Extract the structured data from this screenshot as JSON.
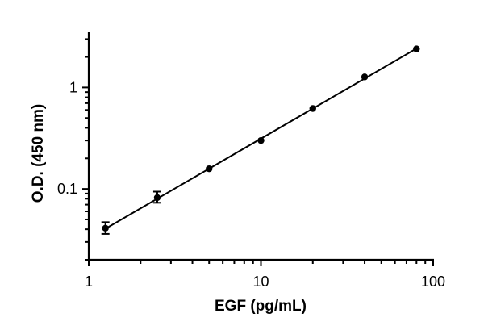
{
  "chart_data": {
    "type": "scatter",
    "title": "",
    "xlabel": "EGF (pg/mL)",
    "ylabel": "O.D. (450 nm)",
    "x_scale": "log",
    "y_scale": "log",
    "xlim": [
      1,
      100
    ],
    "ylim": [
      0.02,
      3.5
    ],
    "x_ticks": [
      {
        "value": 1,
        "label": "1"
      },
      {
        "value": 10,
        "label": "10"
      },
      {
        "value": 100,
        "label": "100"
      }
    ],
    "y_ticks": [
      {
        "value": 0.1,
        "label": "0.1"
      },
      {
        "value": 1,
        "label": "1"
      }
    ],
    "grid": false,
    "legend": "none",
    "marker_color": "#000000",
    "line_color": "#000000",
    "points": [
      {
        "x": 1.25,
        "y": 0.041,
        "err_low": 0.036,
        "err_high": 0.047
      },
      {
        "x": 2.5,
        "y": 0.082,
        "err_low": 0.073,
        "err_high": 0.094
      },
      {
        "x": 5,
        "y": 0.158,
        "err_low": 0.156,
        "err_high": 0.161
      },
      {
        "x": 10,
        "y": 0.3,
        "err_low": 0.295,
        "err_high": 0.305
      },
      {
        "x": 20,
        "y": 0.62,
        "err_low": 0.61,
        "err_high": 0.63
      },
      {
        "x": 40,
        "y": 1.27,
        "err_low": 1.25,
        "err_high": 1.29
      },
      {
        "x": 80,
        "y": 2.4,
        "err_low": 2.37,
        "err_high": 2.43
      }
    ],
    "fit_line": {
      "x": [
        1.25,
        80
      ],
      "y": [
        0.0405,
        2.42
      ]
    }
  }
}
